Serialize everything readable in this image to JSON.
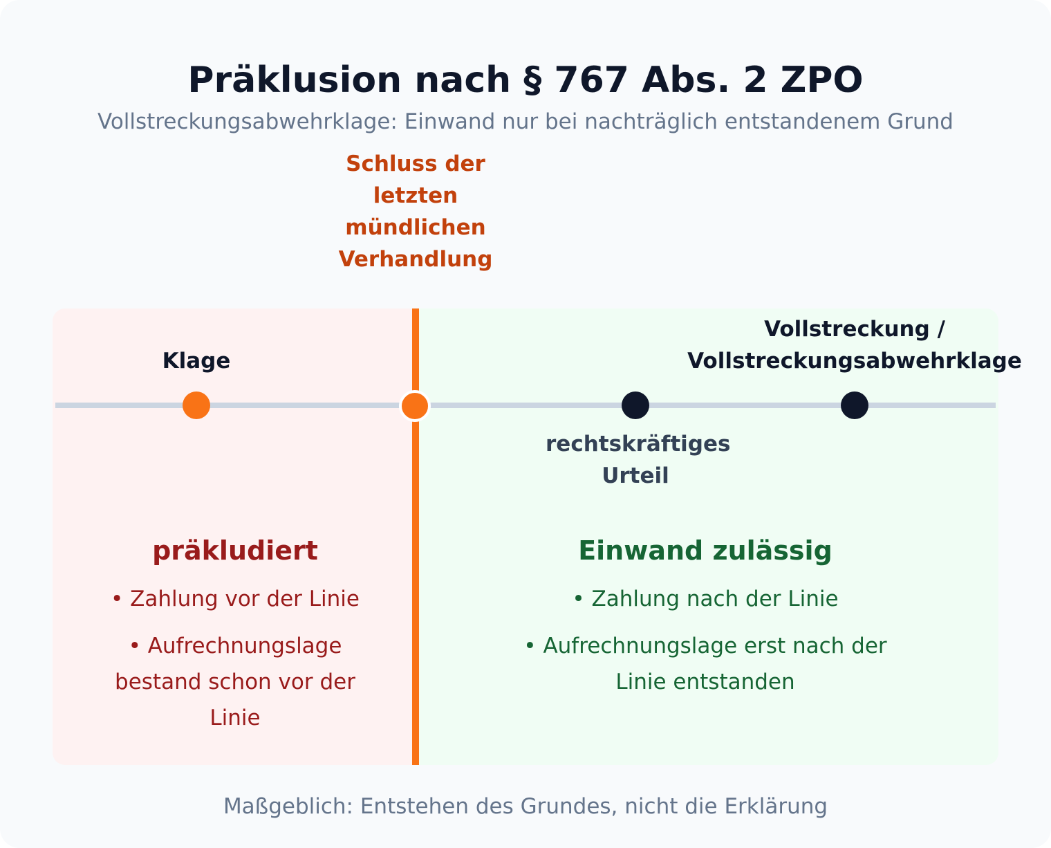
{
  "header": {
    "title": "Präklusion nach § 767 Abs. 2 ZPO",
    "subtitle": "Vollstreckungsabwehrklage: Einwand nur bei nachträglich entstandenem Grund"
  },
  "timeline": {
    "cutoff_label": "Schluss der letzten mündlichen Verhandlung",
    "events": [
      {
        "label": "Klage"
      },
      {
        "label": "rechtskräftiges Urteil"
      },
      {
        "label": "Vollstreckung / Vollstreckungsabwehrklage"
      }
    ]
  },
  "left_section": {
    "title": "präkludiert",
    "items": [
      "Zahlung vor der Linie",
      "Aufrechnungslage bestand schon vor der Linie"
    ]
  },
  "right_section": {
    "title": "Einwand zulässig",
    "items": [
      "Zahlung nach der Linie",
      "Aufrechnungslage erst nach der Linie entstanden"
    ]
  },
  "footer": {
    "note": "Maßgeblich: Entstehen des Grundes, nicht die Erklärung"
  },
  "colors": {
    "cutoff": "#f97316",
    "precluded_bg": "#fef2f2",
    "allowed_bg": "#f0fdf4",
    "precluded_text": "#991b1b",
    "allowed_text": "#166534"
  }
}
